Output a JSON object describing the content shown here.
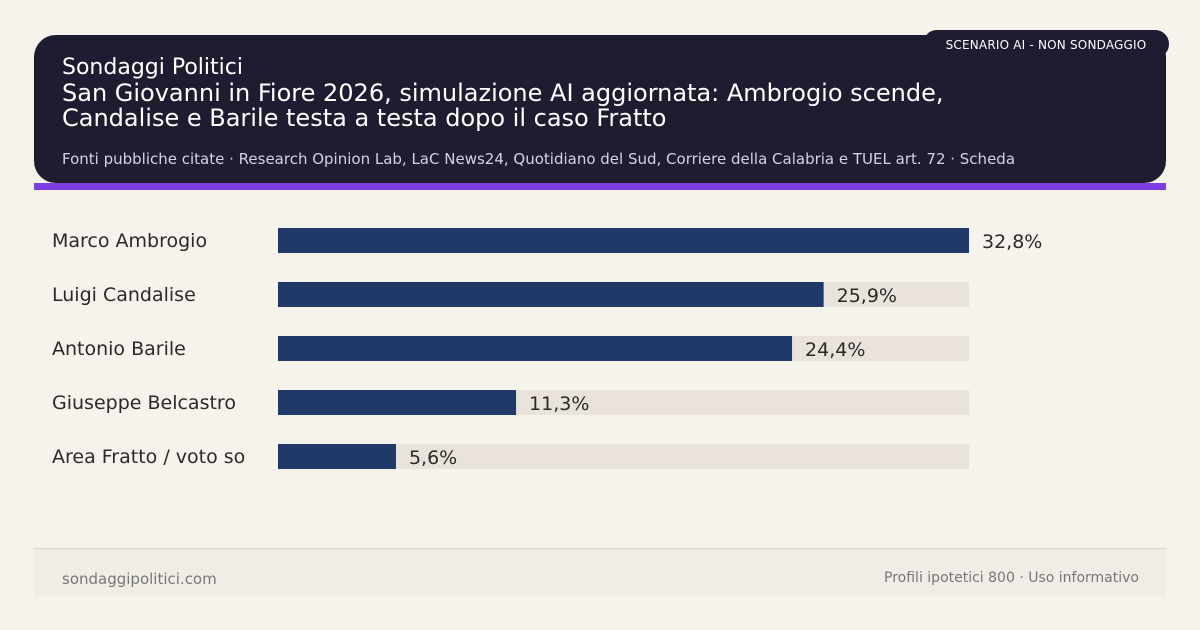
{
  "header": {
    "site_name": "Sondaggi Politici",
    "headline": "San Giovanni in Fiore 2026, simulazione AI aggiornata: Ambrogio scende, Candalise e Barile testa a testa dopo il caso Fratto",
    "sources": "Fonti pubbliche citate · Research Opinion Lab, LaC News24, Quotidiano del Sud, Corriere della Calabria e TUEL art. 72 · Scheda",
    "badge": "SCENARIO AI - NON SONDAGGIO"
  },
  "colors": {
    "header_bg": "#1d1c31",
    "accent": "#7b3fe4",
    "bar": "#1f3a68",
    "track": "#e9e3dc",
    "page_bg": "#f6f3ec"
  },
  "chart_data": {
    "type": "bar",
    "orientation": "horizontal",
    "categories": [
      "Marco Ambrogio",
      "Luigi Candalise",
      "Antonio Barile",
      "Giuseppe Belcastro",
      "Area Fratto / voto so"
    ],
    "values": [
      32.8,
      25.9,
      24.4,
      11.3,
      5.6
    ],
    "value_labels": [
      "32,8%",
      "25,9%",
      "24,4%",
      "11,3%",
      "5,6%"
    ],
    "xlim": [
      0,
      32.8
    ],
    "grid": false
  },
  "footer": {
    "left": "sondaggipolitici.com",
    "right": "Profili ipotetici 800 · Uso informativo"
  }
}
